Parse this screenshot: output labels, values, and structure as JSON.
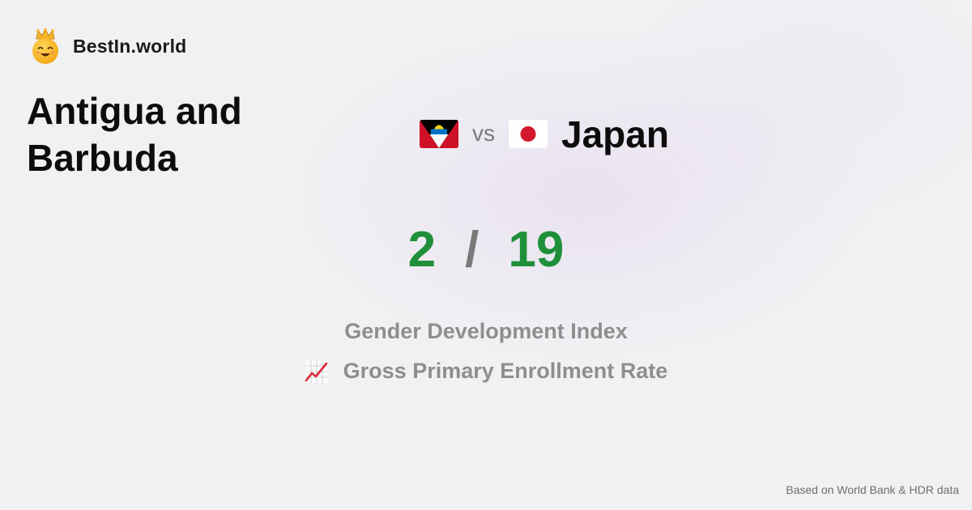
{
  "brand": {
    "name": "BestIn.world",
    "logo_icon": "crown-smiley-icon"
  },
  "comparison": {
    "left_country": "Antigua and Barbuda",
    "left_flag_icon": "antigua-and-barbuda-flag-icon",
    "vs_label": "vs",
    "right_country": "Japan",
    "right_flag_icon": "japan-flag-icon"
  },
  "ranks": {
    "left": "2",
    "separator": "/",
    "right": "19"
  },
  "metrics": {
    "primary": "Gender Development Index",
    "secondary": "Gross Primary Enrollment Rate",
    "secondary_icon": "chart-increasing-icon"
  },
  "footer": {
    "source": "Based on World Bank & HDR data"
  },
  "colors": {
    "rank": "#1f8f3a",
    "muted": "#8e8e8e",
    "title": "#0d0d0d"
  }
}
